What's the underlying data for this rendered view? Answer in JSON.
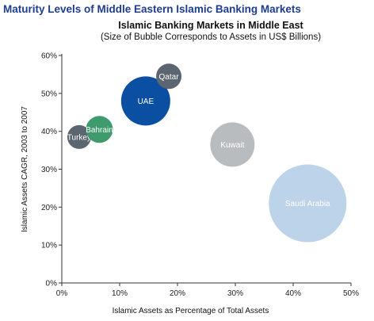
{
  "header": {
    "title": "Maturity Levels of Middle Eastern Islamic Banking Markets"
  },
  "chart_data": {
    "type": "scatter",
    "bubble": true,
    "title": "Islamic Banking Markets in Middle East",
    "subtitle": "(Size of Bubble Corresponds to Assets in US$ Billions)",
    "xlabel": "Islamic Assets as Percentage of Total Assets",
    "ylabel": "Islamic Assets CAGR, 2003 to 2007",
    "xlim": [
      0,
      50
    ],
    "ylim": [
      0,
      60
    ],
    "x_ticks": [
      "0%",
      "10%",
      "20%",
      "30%",
      "40%",
      "50%"
    ],
    "y_ticks": [
      "0%",
      "10%",
      "20%",
      "30%",
      "40%",
      "50%",
      "60%"
    ],
    "grid": false,
    "points": [
      {
        "label": "Turkey",
        "x": 3,
        "y": 38.5,
        "color": "#5c6670"
      },
      {
        "label": "Bahrain",
        "x": 6.5,
        "y": 40.5,
        "color": "#3f9a6e"
      },
      {
        "label": "UAE",
        "x": 14.5,
        "y": 48,
        "color": "#0b4fa2"
      },
      {
        "label": "Qatar",
        "x": 18.5,
        "y": 54.5,
        "color": "#5c6670"
      },
      {
        "label": "Kuwait",
        "x": 29.5,
        "y": 36.5,
        "color": "#b8bcbf"
      },
      {
        "label": "Saudi Arabia",
        "x": 42.5,
        "y": 21,
        "color": "#bcd3ea"
      }
    ]
  }
}
